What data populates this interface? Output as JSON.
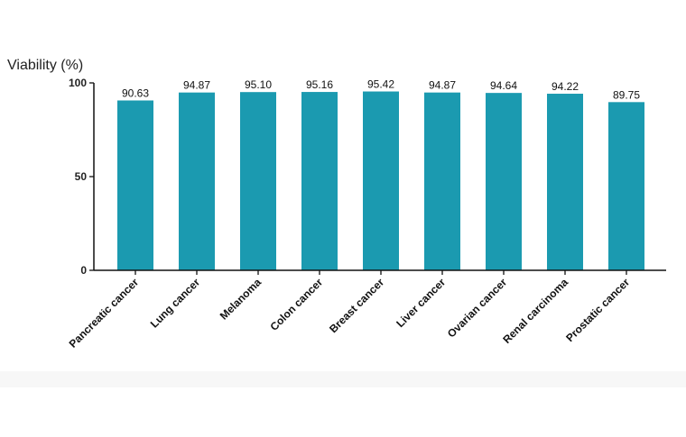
{
  "chart_data": {
    "type": "bar",
    "title": "",
    "xlabel": "",
    "ylabel": "Viability (%)",
    "ylim": [
      0,
      100
    ],
    "yticks": [
      0,
      50,
      100
    ],
    "grid": false,
    "bar_color": "#1b9ab0",
    "categories": [
      "Pancreatic cancer",
      "Lung cancer",
      "Melanoma",
      "Colon cancer",
      "Breast cancer",
      "Liver cancer",
      "Ovarian cancer",
      "Renal carcinoma",
      "Prostatic cancer"
    ],
    "values": [
      90.63,
      94.87,
      95.1,
      95.16,
      95.42,
      94.87,
      94.64,
      94.22,
      89.75
    ],
    "value_labels": [
      "90.63",
      "94.87",
      "95.10",
      "95.16",
      "95.42",
      "94.87",
      "94.64",
      "94.22",
      "89.75"
    ]
  }
}
